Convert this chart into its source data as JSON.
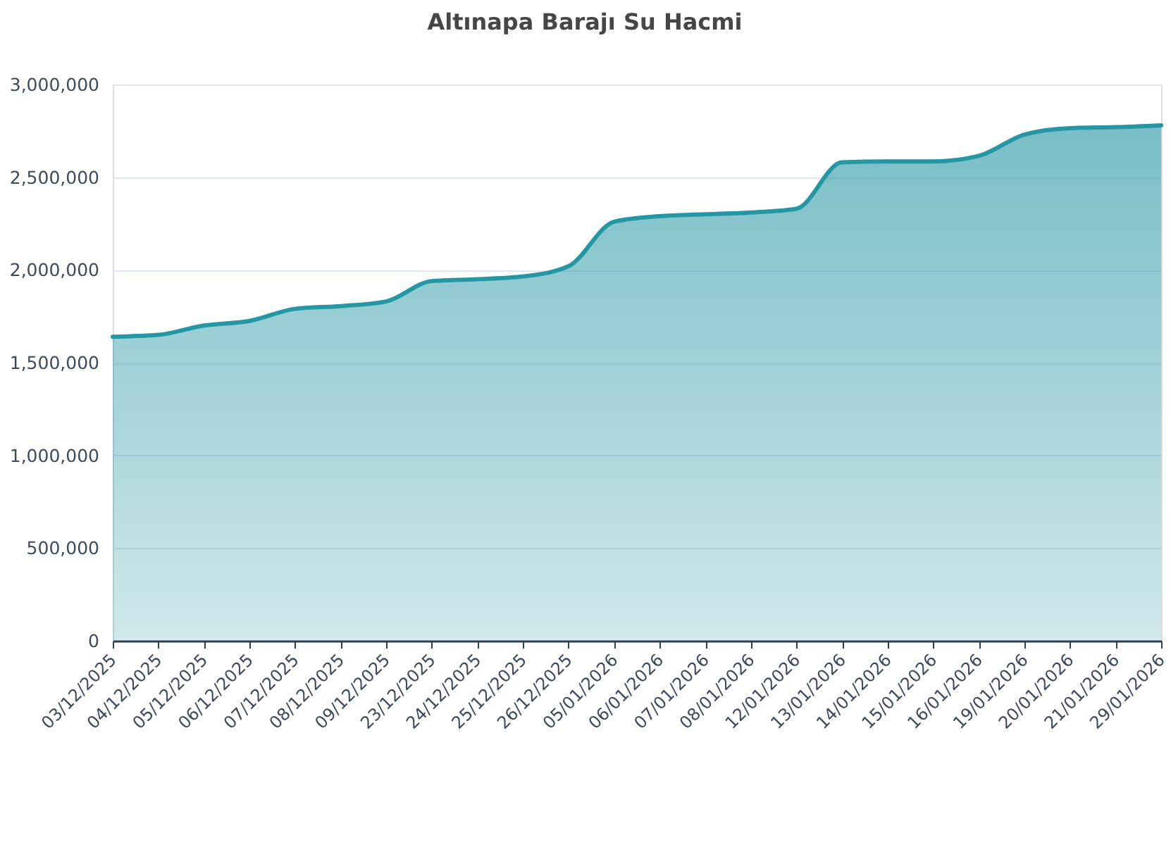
{
  "chart_data": {
    "type": "area",
    "title": "Altınapa Barajı Su Hacmi",
    "categories": [
      "03/12/2025",
      "04/12/2025",
      "05/12/2025",
      "06/12/2025",
      "07/12/2025",
      "08/12/2025",
      "09/12/2025",
      "23/12/2025",
      "24/12/2025",
      "25/12/2025",
      "26/12/2025",
      "05/01/2026",
      "06/01/2026",
      "07/01/2026",
      "08/01/2026",
      "12/01/2026",
      "13/01/2026",
      "14/01/2026",
      "15/01/2026",
      "16/01/2026",
      "19/01/2026",
      "20/01/2026",
      "21/01/2026",
      "29/01/2026"
    ],
    "series": [
      {
        "color": "#2596a4",
        "values": [
          1640000,
          1650000,
          1700000,
          1725000,
          1790000,
          1805000,
          1830000,
          1940000,
          1950000,
          1965000,
          2020000,
          2260000,
          2290000,
          2300000,
          2310000,
          2330000,
          2580000,
          2585000,
          2585000,
          2615000,
          2730000,
          2765000,
          2770000,
          2780000
        ]
      }
    ],
    "ylim": [
      0,
      3000000
    ],
    "yticks": [
      0,
      {
        "value": 500000,
        "label": "500,000"
      },
      {
        "value": 1000000,
        "label": "1,000,000"
      },
      {
        "value": 1500000,
        "label": "1,500,000"
      },
      {
        "value": 2000000,
        "label": "2,000,000"
      },
      {
        "value": 2500000,
        "label": "2,500,000"
      },
      {
        "value": 3000000,
        "label": "3,000,000"
      }
    ],
    "grid": "y"
  }
}
